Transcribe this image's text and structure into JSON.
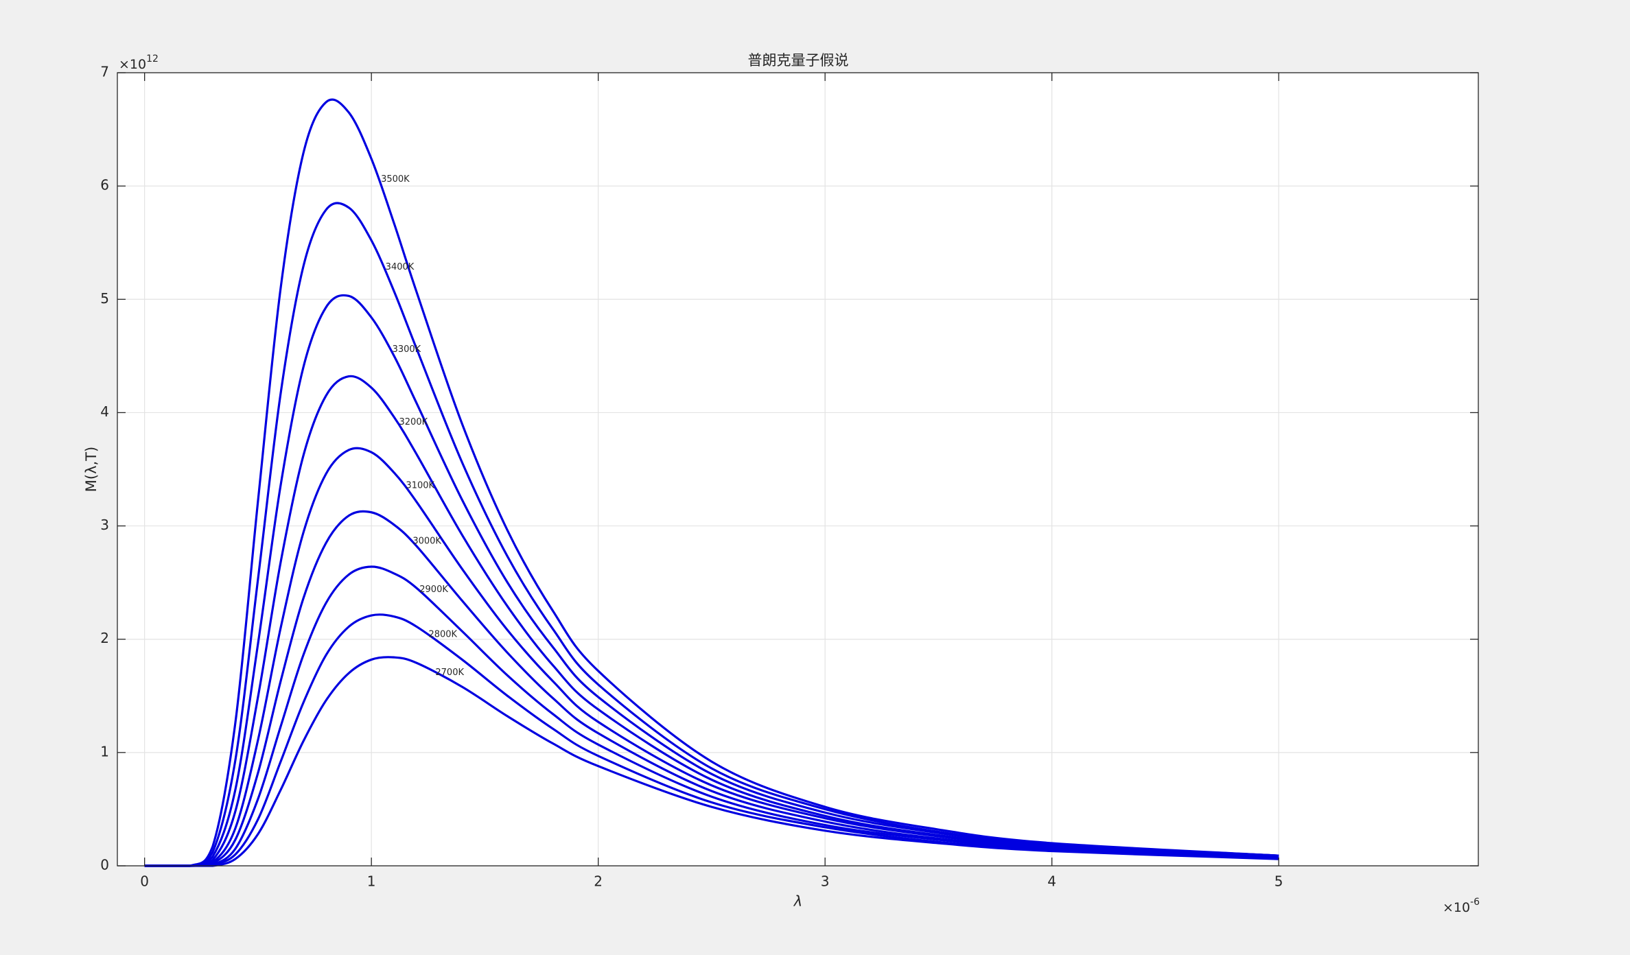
{
  "chart_data": {
    "type": "line",
    "title": "普朗克量子假说",
    "x_label": "λ",
    "y_label": "M(λ,T)",
    "x_exponent": {
      "base": "×10",
      "power": "-6"
    },
    "y_exponent": {
      "base": "×10",
      "power": "12"
    },
    "xlim": [
      -0.12,
      5.88
    ],
    "ylim": [
      0,
      7
    ],
    "xticks": [
      0,
      1,
      2,
      3,
      4,
      5
    ],
    "yticks": [
      0,
      1,
      2,
      3,
      4,
      5,
      6,
      7
    ],
    "grid": true,
    "x": [
      0,
      0.2,
      0.3,
      0.4,
      0.5,
      0.6,
      0.7,
      0.8,
      0.9,
      1,
      1.1,
      1.2,
      1.4,
      1.6,
      1.8,
      2,
      2.5,
      3,
      3.5,
      4,
      5
    ],
    "series": [
      {
        "name": "3500K",
        "color": "#0000e0",
        "values": [
          0,
          0,
          0.17,
          1.26,
          3.22,
          5.1,
          6.29,
          6.74,
          6.65,
          6.24,
          5.67,
          5.06,
          3.9,
          2.96,
          2.25,
          1.72,
          0.92,
          0.52,
          0.32,
          0.2,
          0.09
        ]
      },
      {
        "name": "3400K",
        "color": "#0000e0",
        "values": [
          0,
          0,
          0.12,
          0.93,
          2.53,
          4.17,
          5.29,
          5.79,
          5.81,
          5.52,
          5.07,
          4.56,
          3.56,
          2.73,
          2.09,
          1.6,
          0.86,
          0.5,
          0.3,
          0.19,
          0.09
        ]
      },
      {
        "name": "3300K",
        "color": "#0000e0",
        "values": [
          0,
          0,
          0.08,
          0.67,
          1.96,
          3.36,
          4.4,
          4.93,
          5.03,
          4.84,
          4.5,
          4.08,
          3.23,
          2.5,
          1.93,
          1.49,
          0.81,
          0.47,
          0.29,
          0.19,
          0.09
        ]
      },
      {
        "name": "3200K",
        "color": "#0000e0",
        "values": [
          0,
          0,
          0.05,
          0.48,
          1.49,
          2.68,
          3.62,
          4.15,
          4.32,
          4.22,
          3.96,
          3.63,
          2.92,
          2.29,
          1.77,
          1.38,
          0.76,
          0.44,
          0.27,
          0.18,
          0.08
        ]
      },
      {
        "name": "3100K",
        "color": "#0000e0",
        "values": [
          0,
          0,
          0.03,
          0.33,
          1.11,
          2.1,
          2.94,
          3.46,
          3.67,
          3.65,
          3.47,
          3.21,
          2.62,
          2.08,
          1.63,
          1.27,
          0.71,
          0.42,
          0.26,
          0.17,
          0.08
        ]
      },
      {
        "name": "3000K",
        "color": "#0000e0",
        "values": [
          0,
          0,
          0.02,
          0.23,
          0.82,
          1.63,
          2.36,
          2.85,
          3.09,
          3.12,
          3.01,
          2.82,
          2.34,
          1.88,
          1.48,
          1.17,
          0.66,
          0.39,
          0.24,
          0.16,
          0.07
        ]
      },
      {
        "name": "2900K",
        "color": "#0000e0",
        "values": [
          0,
          0,
          0.01,
          0.15,
          0.59,
          1.23,
          1.86,
          2.32,
          2.57,
          2.64,
          2.58,
          2.45,
          2.07,
          1.68,
          1.34,
          1.07,
          0.61,
          0.36,
          0.23,
          0.15,
          0.07
        ]
      },
      {
        "name": "2800K",
        "color": "#0000e0",
        "values": [
          0,
          0,
          0.01,
          0.1,
          0.41,
          0.92,
          1.44,
          1.86,
          2.11,
          2.21,
          2.2,
          2.11,
          1.82,
          1.5,
          1.21,
          0.97,
          0.56,
          0.34,
          0.21,
          0.14,
          0.07
        ]
      },
      {
        "name": "2700K",
        "color": "#0000e0",
        "values": [
          0,
          0,
          0,
          0.06,
          0.28,
          0.67,
          1.1,
          1.46,
          1.7,
          1.82,
          1.84,
          1.79,
          1.58,
          1.32,
          1.08,
          0.88,
          0.52,
          0.31,
          0.2,
          0.13,
          0.06
        ]
      }
    ]
  }
}
